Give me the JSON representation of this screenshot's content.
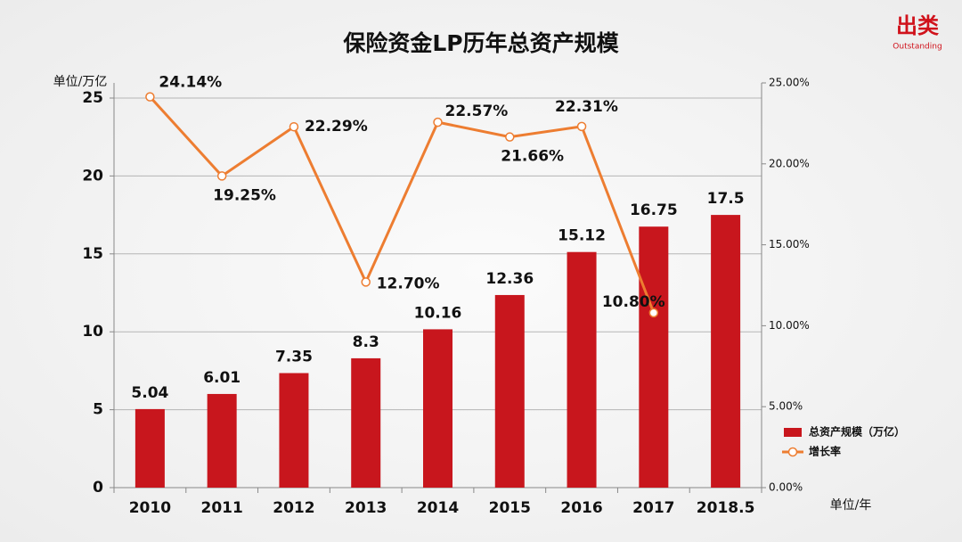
{
  "brand": {
    "name": "出类",
    "tagline": "Outstanding"
  },
  "chart_data": {
    "type": "bar-line",
    "title": "保险资金LP历年总资产规模",
    "y_label": "单位/万亿",
    "x_label": "单位/年",
    "categories": [
      "2010",
      "2011",
      "2012",
      "2013",
      "2014",
      "2015",
      "2016",
      "2017",
      "2018.5"
    ],
    "series": [
      {
        "name": "总资产规模（万亿）",
        "type": "bar",
        "color": "#c8161d",
        "axis": "y",
        "values": [
          5.04,
          6.01,
          7.35,
          8.3,
          10.16,
          12.36,
          15.12,
          16.75,
          17.5
        ]
      },
      {
        "name": "增长率",
        "type": "line",
        "color": "#ed7d31",
        "axis": "y2",
        "values": [
          24.14,
          19.25,
          22.29,
          12.7,
          22.57,
          21.66,
          22.31,
          10.8,
          null
        ],
        "value_labels": [
          "24.14%",
          "19.25%",
          "22.29%",
          "12.70%",
          "22.57%",
          "21.66%",
          "22.31%",
          "10.80%",
          null
        ]
      }
    ],
    "ylim": [
      0,
      25
    ],
    "yticks": [
      0,
      5,
      10,
      15,
      20,
      25
    ],
    "y2lim": [
      0,
      25
    ],
    "y2ticks": [
      {
        "value": 0,
        "label": "0.00%"
      },
      {
        "value": 5,
        "label": "5.00%"
      },
      {
        "value": 10,
        "label": "10.00%"
      },
      {
        "value": 15,
        "label": "15.00%"
      },
      {
        "value": 20,
        "label": "20.00%"
      },
      {
        "value": 25,
        "label": "25.00%"
      }
    ],
    "grid": true,
    "legend": "right"
  }
}
